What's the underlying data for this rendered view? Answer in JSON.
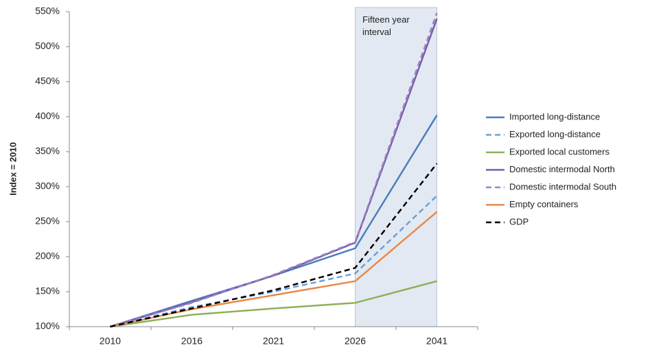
{
  "chart_data": {
    "type": "line",
    "y_label": "Index = 2010",
    "annotation": "Fifteen year interval",
    "categories": [
      "2010",
      "2016",
      "2021",
      "2026",
      "2041"
    ],
    "ylim": [
      100,
      550
    ],
    "yticks": [
      {
        "value": 100,
        "label": "100%"
      },
      {
        "value": 150,
        "label": "150%"
      },
      {
        "value": 200,
        "label": "200%"
      },
      {
        "value": 250,
        "label": "250%"
      },
      {
        "value": 300,
        "label": "300%"
      },
      {
        "value": 350,
        "label": "350%"
      },
      {
        "value": 400,
        "label": "400%"
      },
      {
        "value": 450,
        "label": "450%"
      },
      {
        "value": 500,
        "label": "500%"
      },
      {
        "value": 550,
        "label": "550%"
      }
    ],
    "legend": "right",
    "series": [
      {
        "name": "Imported long-distance",
        "color": "#4a7ebb",
        "dashed": false,
        "values": [
          100,
          137,
          173,
          212,
          402
        ]
      },
      {
        "name": "Exported long-distance",
        "color": "#6e9fd6",
        "dashed": true,
        "values": [
          100,
          128,
          150,
          176,
          287
        ]
      },
      {
        "name": "Exported local customers",
        "color": "#8db157",
        "dashed": false,
        "values": [
          100,
          117,
          126,
          134,
          165
        ]
      },
      {
        "name": "Domestic intermodal North",
        "color": "#7a5ea7",
        "dashed": false,
        "values": [
          100,
          135,
          173,
          220,
          540
        ]
      },
      {
        "name": "Domestic intermodal South",
        "color": "#9b82c8",
        "dashed": true,
        "values": [
          100,
          134,
          174,
          221,
          548
        ]
      },
      {
        "name": "Empty containers",
        "color": "#e8894a",
        "dashed": false,
        "values": [
          100,
          125,
          145,
          165,
          264
        ]
      },
      {
        "name": "GDP",
        "color": "#000000",
        "dashed": true,
        "values": [
          100,
          126,
          152,
          184,
          333
        ]
      }
    ]
  }
}
